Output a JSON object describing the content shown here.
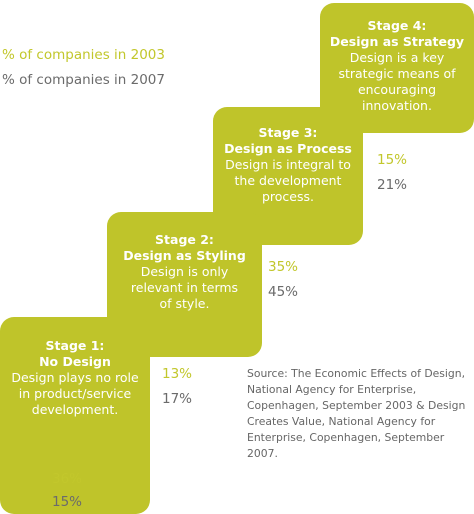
{
  "colors": {
    "stage_fill": "#bfc42a",
    "pct_2003": "#c2c72c",
    "pct_2007": "#6b6b6b",
    "text_white": "#ffffff"
  },
  "legend": {
    "y2003": "% of companies in 2003",
    "y2007": "% of companies in 2007"
  },
  "stages": [
    {
      "title": "Stage 1:",
      "name": "No Design",
      "desc_lines": [
        "Design plays no role",
        "in product/service",
        "development."
      ],
      "pct_2003": "36%",
      "pct_2007": "15%"
    },
    {
      "title": "Stage 2:",
      "name": "Design as Styling",
      "desc_lines": [
        "Design is only",
        "relevant in terms",
        "of style."
      ],
      "pct_2003": "13%",
      "pct_2007": "17%"
    },
    {
      "title": "Stage 3:",
      "name": "Design as Process",
      "desc_lines": [
        "Design is integral to",
        "the development",
        "process."
      ],
      "pct_2003": "35%",
      "pct_2007": "45%"
    },
    {
      "title": "Stage 4:",
      "name": "Design as Strategy",
      "desc_lines": [
        "Design is a key",
        "strategic means of",
        "encouraging",
        "innovation."
      ],
      "pct_2003": "15%",
      "pct_2007": "21%"
    }
  ],
  "source": {
    "lines": [
      "Source: The Economic Effects of Design,",
      "National Agency for Enterprise,",
      "Copenhagen, September 2003 & Design",
      "Creates Value, National Agency for",
      "Enterprise, Copenhagen, September 2007."
    ]
  }
}
